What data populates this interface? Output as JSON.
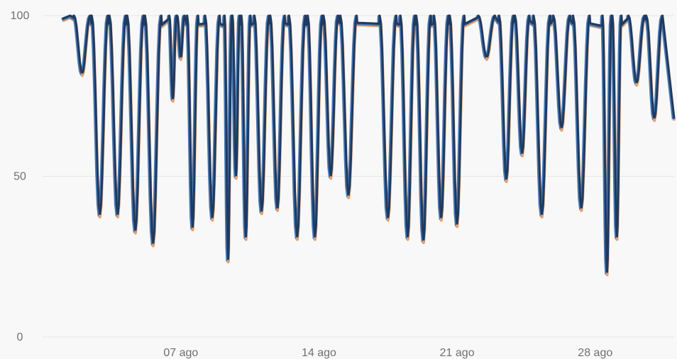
{
  "chart_data": {
    "type": "line",
    "title": "",
    "xlabel": "",
    "ylabel": "",
    "ylim": [
      0,
      100
    ],
    "y_ticks": [
      "0",
      "50",
      "100"
    ],
    "x_tick_labels": [
      "07 ago",
      "14 ago",
      "21 ago",
      "28 ago"
    ],
    "x_range_days": [
      1,
      32
    ],
    "x_tick_days": [
      7,
      14,
      21,
      28
    ],
    "grid": "horizontal",
    "colors": {
      "series_main": "#1f3a5f",
      "series_light": "#4a7ab5",
      "series_min": "#e8a06a",
      "grid": "#e6e6e6",
      "tick_text": "#707070"
    },
    "dips": [
      {
        "day": 2.0,
        "min": 82
      },
      {
        "day": 2.9,
        "min": 38
      },
      {
        "day": 3.8,
        "min": 38
      },
      {
        "day": 4.7,
        "min": 33
      },
      {
        "day": 5.6,
        "min": 29
      },
      {
        "day": 6.6,
        "min": 74
      },
      {
        "day": 7.0,
        "min": 87
      },
      {
        "day": 7.6,
        "min": 34
      },
      {
        "day": 8.6,
        "min": 37
      },
      {
        "day": 9.4,
        "min": 24
      },
      {
        "day": 9.8,
        "min": 50
      },
      {
        "day": 10.3,
        "min": 31
      },
      {
        "day": 11.1,
        "min": 39
      },
      {
        "day": 11.9,
        "min": 40
      },
      {
        "day": 12.9,
        "min": 31
      },
      {
        "day": 13.8,
        "min": 31
      },
      {
        "day": 14.6,
        "min": 50
      },
      {
        "day": 15.5,
        "min": 44
      },
      {
        "day": 17.5,
        "min": 37
      },
      {
        "day": 18.5,
        "min": 31
      },
      {
        "day": 19.3,
        "min": 30
      },
      {
        "day": 20.2,
        "min": 37
      },
      {
        "day": 21.0,
        "min": 35
      },
      {
        "day": 22.5,
        "min": 87
      },
      {
        "day": 23.5,
        "min": 49
      },
      {
        "day": 24.3,
        "min": 57
      },
      {
        "day": 25.3,
        "min": 38
      },
      {
        "day": 26.3,
        "min": 65
      },
      {
        "day": 27.3,
        "min": 40
      },
      {
        "day": 28.6,
        "min": 20
      },
      {
        "day": 29.1,
        "min": 31
      },
      {
        "day": 30.1,
        "min": 79
      },
      {
        "day": 31.0,
        "min": 68
      }
    ]
  }
}
